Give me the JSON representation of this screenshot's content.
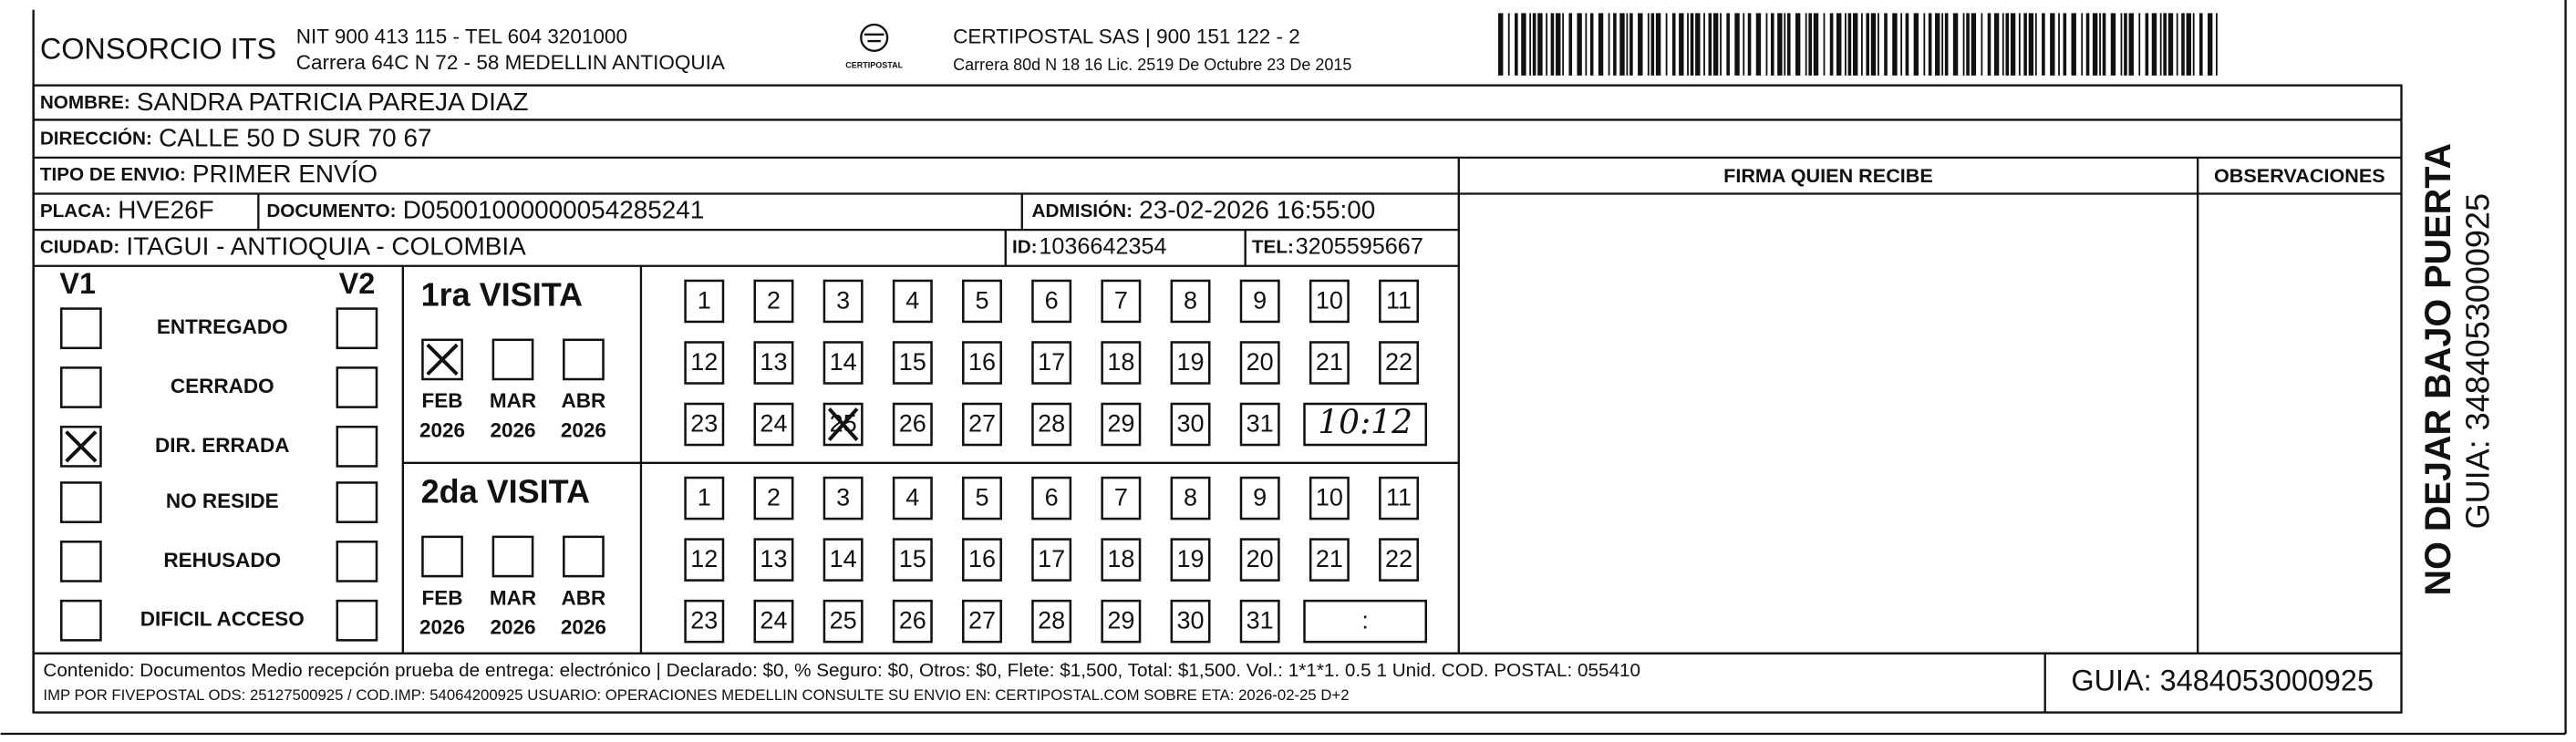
{
  "header": {
    "company": "CONSORCIO ITS",
    "nit": "NIT 900 413 115 - TEL 604 3201000",
    "address": "Carrera 64C N 72 - 58 MEDELLIN ANTIOQUIA",
    "logo_text": "CERTIPOSTAL",
    "courier": "CERTIPOSTAL SAS | 900 151 122 - 2",
    "courier_address": "Carrera 80d N 18 16  Lic. 2519 De Octubre 23 De 2015"
  },
  "fields": {
    "nombre": {
      "label": "NOMBRE:",
      "value": "SANDRA PATRICIA PAREJA DIAZ"
    },
    "direccion": {
      "label": "DIRECCIÓN:",
      "value": "CALLE 50 D SUR  70  67"
    },
    "tipo": {
      "label": "TIPO DE ENVIO:",
      "value": "PRIMER ENVÍO"
    },
    "placa": {
      "label": "PLACA:",
      "value": "HVE26F"
    },
    "documento": {
      "label": "DOCUMENTO:",
      "value": "D05001000000054285241"
    },
    "admision": {
      "label": "ADMISIÓN:",
      "value": "23-02-2026 16:55:00"
    },
    "ciudad": {
      "label": "CIUDAD:",
      "value": "ITAGUI - ANTIOQUIA - COLOMBIA"
    },
    "id": {
      "label": "ID:",
      "value": "1036642354"
    },
    "tel": {
      "label": "TEL:",
      "value": "3205595667"
    }
  },
  "signature_header": "FIRMA QUIEN RECIBE",
  "observations_header": "OBSERVACIONES",
  "status": {
    "v1": "V1",
    "v2": "V2",
    "options": [
      {
        "label": "ENTREGADO",
        "v1_checked": false,
        "v2_checked": false
      },
      {
        "label": "CERRADO",
        "v1_checked": false,
        "v2_checked": false
      },
      {
        "label": "DIR. ERRADA",
        "v1_checked": true,
        "v2_checked": false
      },
      {
        "label": "NO RESIDE",
        "v1_checked": false,
        "v2_checked": false
      },
      {
        "label": "REHUSADO",
        "v1_checked": false,
        "v2_checked": false
      },
      {
        "label": "DIFICIL ACCESO",
        "v1_checked": false,
        "v2_checked": false
      }
    ]
  },
  "visits": [
    {
      "title": "1ra VISITA",
      "months": [
        {
          "month": "FEB",
          "year": "2026",
          "checked": true
        },
        {
          "month": "MAR",
          "year": "2026",
          "checked": false
        },
        {
          "month": "ABR",
          "year": "2026",
          "checked": false
        }
      ],
      "days": [
        1,
        2,
        3,
        4,
        5,
        6,
        7,
        8,
        9,
        10,
        11,
        12,
        13,
        14,
        15,
        16,
        17,
        18,
        19,
        20,
        21,
        22,
        23,
        24,
        25,
        26,
        27,
        28,
        29,
        30,
        31
      ],
      "crossed_day": 25,
      "time": "10:12"
    },
    {
      "title": "2da VISITA",
      "months": [
        {
          "month": "FEB",
          "year": "2026",
          "checked": false
        },
        {
          "month": "MAR",
          "year": "2026",
          "checked": false
        },
        {
          "month": "ABR",
          "year": "2026",
          "checked": false
        }
      ],
      "days": [
        1,
        2,
        3,
        4,
        5,
        6,
        7,
        8,
        9,
        10,
        11,
        12,
        13,
        14,
        15,
        16,
        17,
        18,
        19,
        20,
        21,
        22,
        23,
        24,
        25,
        26,
        27,
        28,
        29,
        30,
        31
      ],
      "time": ":"
    }
  ],
  "footer": {
    "line1": "Contenido: Documentos Medio recepción prueba de entrega: electrónico | Declarado: $0, % Seguro: $0, Otros: $0, Flete: $1,500, Total: $1,500. Vol.: 1*1*1. 0.5  1 Unid. COD. POSTAL: 055410",
    "line2": "IMP POR FIVEPOSTAL ODS: 25127500925 / COD.IMP: 54064200925 USUARIO: OPERACIONES MEDELLIN CONSULTE SU ENVIO EN: CERTIPOSTAL.COM SOBRE ETA: 2026-02-25 D+2",
    "guia": "GUIA: 3484053000925"
  },
  "side": {
    "warning": "NO DEJAR BAJO PUERTA",
    "guia": "GUIA: 3484053000925"
  }
}
